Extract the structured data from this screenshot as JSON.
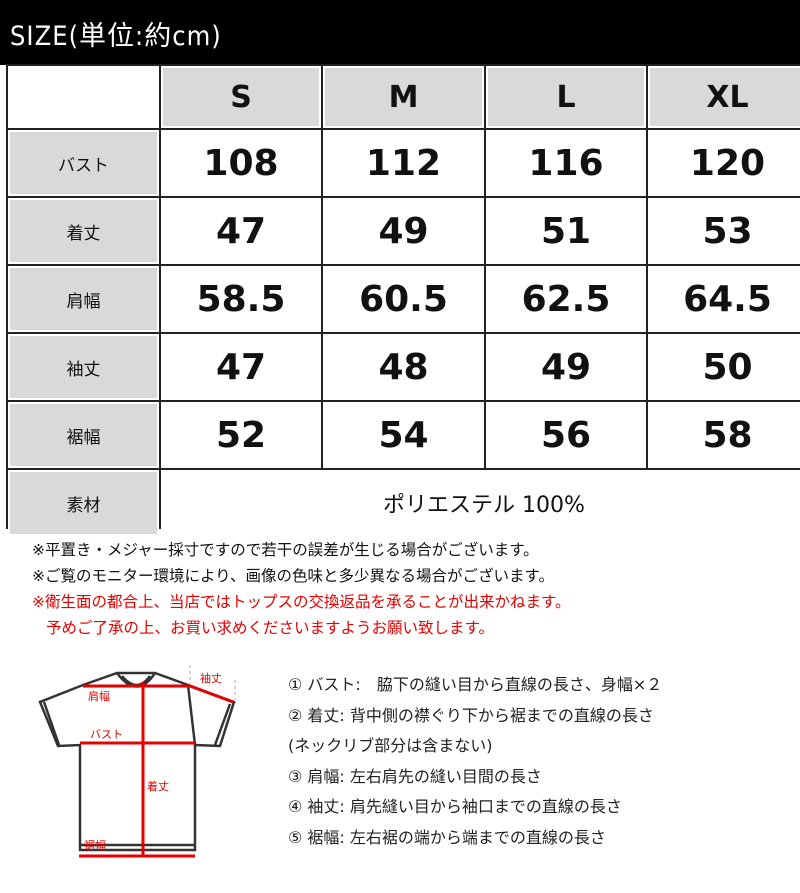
{
  "title": "SIZE(単位:約cm)",
  "table": {
    "columns": [
      "S",
      "M",
      "L",
      "XL"
    ],
    "rows": [
      {
        "label": "バスト",
        "values": [
          "108",
          "112",
          "116",
          "120"
        ]
      },
      {
        "label": "着丈",
        "values": [
          "47",
          "49",
          "51",
          "53"
        ]
      },
      {
        "label": "肩幅",
        "values": [
          "58.5",
          "60.5",
          "62.5",
          "64.5"
        ]
      },
      {
        "label": "袖丈",
        "values": [
          "47",
          "48",
          "49",
          "50"
        ]
      },
      {
        "label": "裾幅",
        "values": [
          "52",
          "54",
          "56",
          "58"
        ]
      }
    ],
    "material": {
      "label": "素材",
      "value": "ポリエステル 100%"
    }
  },
  "notes": [
    "※平置き・メジャー採寸ですので若干の誤差が生じる場合がございます。",
    "※ご覧のモニター環境により、画像の色味と多少異なる場合がございます。"
  ],
  "warning": [
    "※衛生面の都合上、当店ではトップスの交換返品を承ることが出来かねます。",
    "予めご了承の上、お買い求めくださいますようお願い致します。"
  ],
  "diagram_labels": {
    "shoulder": "肩幅",
    "sleeve": "袖丈",
    "bust": "バスト",
    "length": "着丈",
    "hem": "裾幅"
  },
  "measurements": [
    "① バスト:　脇下の縫い目から直線の長さ、身幅×２",
    "② 着丈:  背中側の襟ぐり下から裾までの直線の長さ",
    "(ネックリブ部分は含まない)",
    "③ 肩幅:  左右肩先の縫い目間の長さ",
    "④ 袖丈:  肩先縫い目から袖口までの直線の長さ",
    "⑤ 裾幅:  左右裾の端から端までの直線の長さ"
  ],
  "colors": {
    "header_bg": "#000000",
    "cell_gray": "#d9d9d9",
    "warning": "#e60000"
  }
}
